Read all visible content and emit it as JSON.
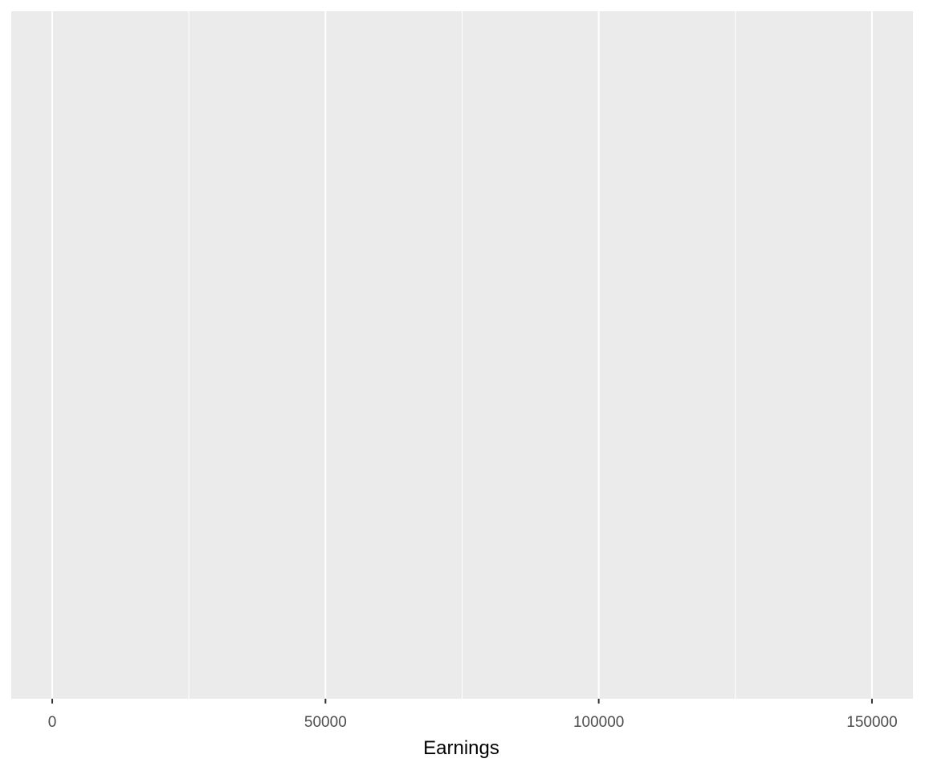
{
  "chart_data": {
    "type": "bar",
    "title": "",
    "xlabel": "Earnings",
    "ylabel": "",
    "xlim": [
      -7500,
      157500
    ],
    "x_ticks": [
      0,
      50000,
      100000,
      150000
    ],
    "x_tick_labels": [
      "0",
      "50000",
      "100000",
      "150000"
    ],
    "x_minor_ticks": [
      25000,
      75000,
      125000
    ],
    "y_ticks": [],
    "series": [],
    "grid": true,
    "legend": "none",
    "colors": {
      "panel_background": "#ebebeb",
      "grid_major": "#ffffff",
      "grid_minor": "#ffffff",
      "tick_label": "#4d4d4d",
      "axis_title": "#000000"
    }
  }
}
